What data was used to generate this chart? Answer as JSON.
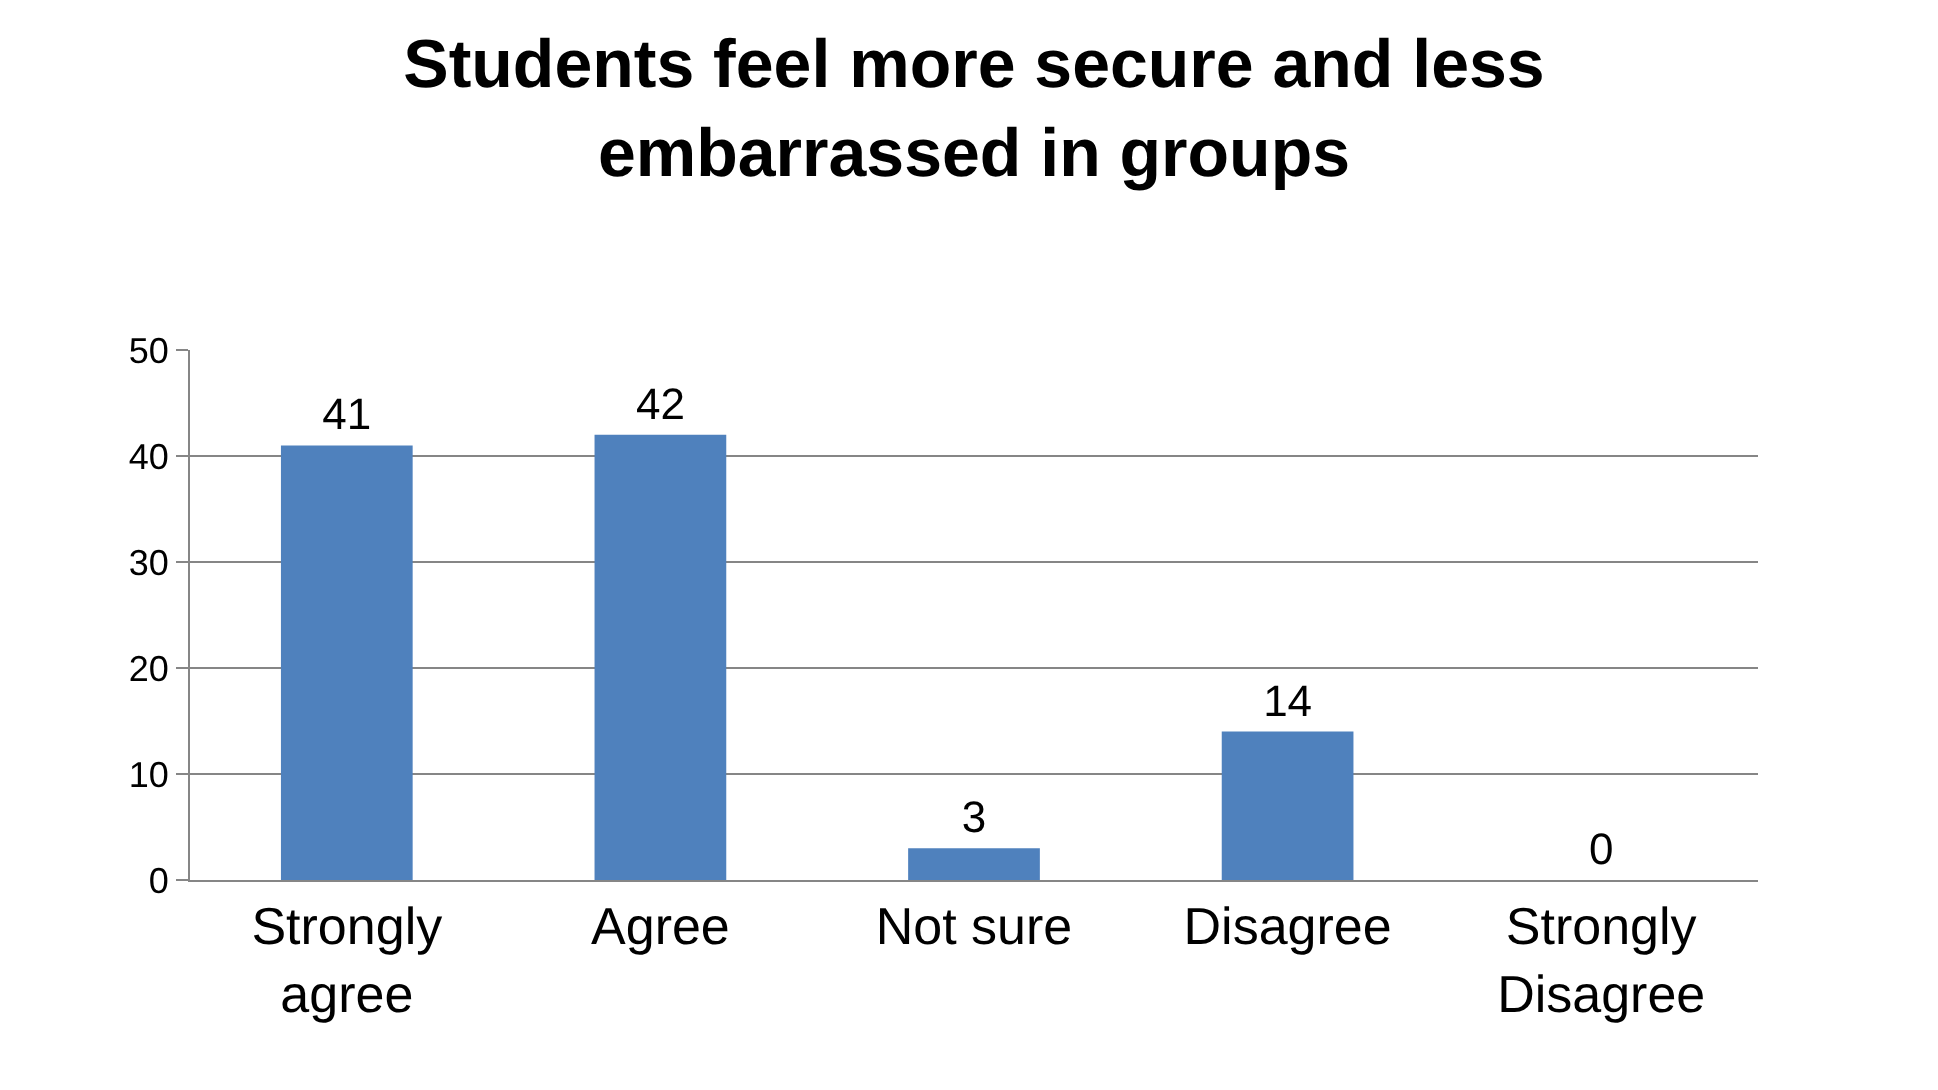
{
  "chart_data": {
    "type": "bar",
    "title": "Students feel more secure and less embarrassed in groups",
    "categories": [
      "Strongly agree",
      "Agree",
      "Not sure",
      "Disagree",
      "Strongly Disagree"
    ],
    "values": [
      41,
      42,
      3,
      14,
      0
    ],
    "color": "#4f81bd",
    "ylim": [
      0,
      50
    ],
    "yticks": [
      0,
      10,
      20,
      30,
      40,
      50
    ],
    "grid": "y",
    "data_labels": true
  }
}
